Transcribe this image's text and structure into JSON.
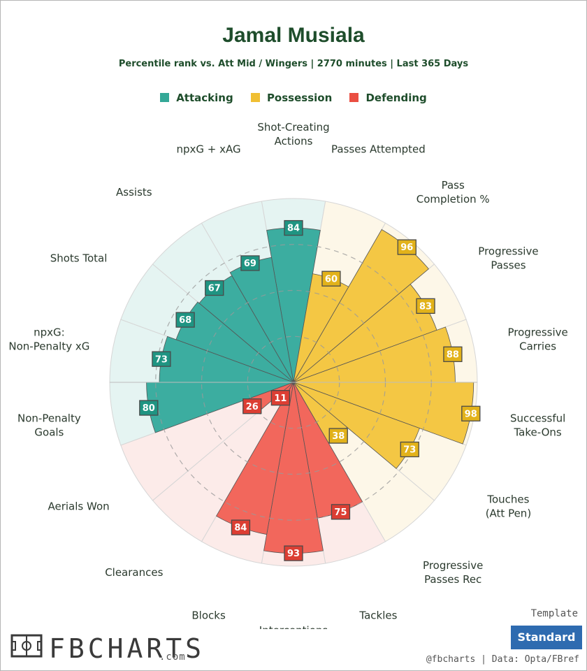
{
  "header": {
    "title": "Jamal Musiala",
    "subtitle": "Percentile rank vs. Att Mid / Wingers | 2770 minutes | Last 365 Days"
  },
  "legend": [
    {
      "label": "Attacking",
      "color": "#34a897"
    },
    {
      "label": "Possession",
      "color": "#f0bf33"
    },
    {
      "label": "Defending",
      "color": "#ea4e42"
    }
  ],
  "colors": {
    "attacking_fill": "#3cada0",
    "attacking_bg": "#e5f4f2",
    "attacking_label": "#1f9482",
    "possession_fill": "#f4c744",
    "possession_bg": "#fdf7e8",
    "possession_label": "#e2b21a",
    "defending_fill": "#f2675c",
    "defending_bg": "#fcebe9",
    "defending_label": "#dc3e33",
    "title": "#1e4d2b"
  },
  "chart_data": {
    "type": "polar-bar",
    "scale": [
      0,
      100
    ],
    "metrics": [
      {
        "label": "Shot-Creating Actions",
        "value": 84,
        "group": "Attacking"
      },
      {
        "label": "Passes Attempted",
        "value": 60,
        "group": "Possession"
      },
      {
        "label": "Pass Completion %",
        "value": 96,
        "group": "Possession"
      },
      {
        "label": "Progressive Passes",
        "value": 83,
        "group": "Possession"
      },
      {
        "label": "Progressive Carries",
        "value": 88,
        "group": "Possession"
      },
      {
        "label": "Successful Take-Ons",
        "value": 98,
        "group": "Possession"
      },
      {
        "label": "Touches (Att Pen)",
        "value": 73,
        "group": "Possession"
      },
      {
        "label": "Progressive Passes Rec",
        "value": 38,
        "group": "Possession"
      },
      {
        "label": "Tackles",
        "value": 75,
        "group": "Defending"
      },
      {
        "label": "Interceptions",
        "value": 93,
        "group": "Defending"
      },
      {
        "label": "Blocks",
        "value": 84,
        "group": "Defending"
      },
      {
        "label": "Clearances",
        "value": 11,
        "group": "Defending"
      },
      {
        "label": "Aerials Won",
        "value": 26,
        "group": "Defending"
      },
      {
        "label": "Non-Penalty Goals",
        "value": 80,
        "group": "Attacking"
      },
      {
        "label": "npxG: Non-Penalty xG",
        "value": 73,
        "group": "Attacking"
      },
      {
        "label": "Shots Total",
        "value": 68,
        "group": "Attacking"
      },
      {
        "label": "Assists",
        "value": 67,
        "group": "Attacking"
      },
      {
        "label": "npxG + xAG",
        "value": 69,
        "group": "Attacking"
      }
    ]
  },
  "footer": {
    "brand": "FBCHARTS",
    "brand_suffix": ".com",
    "template_label": "Template",
    "template_value": "Standard",
    "credit": "@fbcharts | Data: Opta/FBref"
  }
}
